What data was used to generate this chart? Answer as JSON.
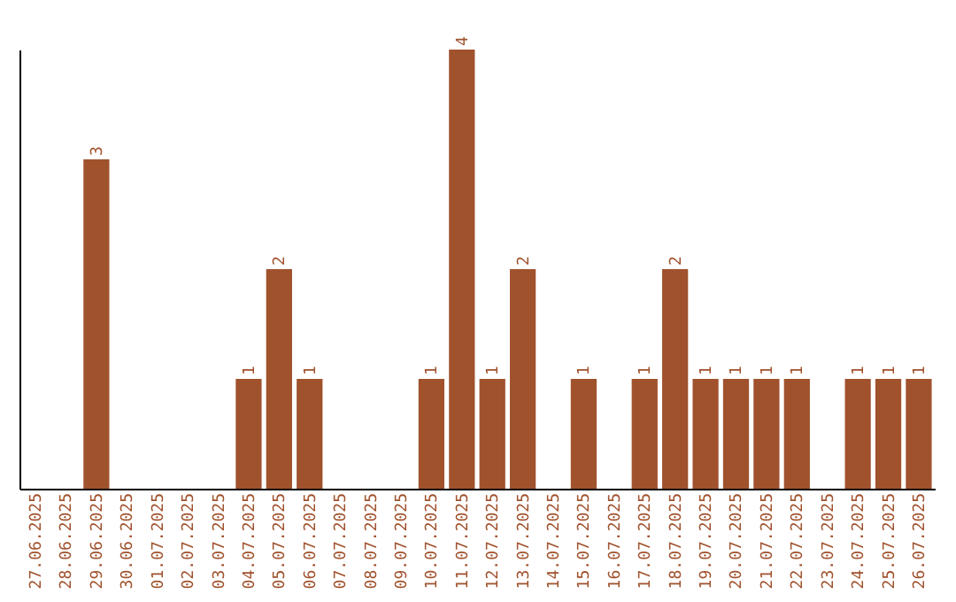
{
  "chart_data": {
    "type": "bar",
    "categories": [
      "27.06.2025",
      "28.06.2025",
      "29.06.2025",
      "30.06.2025",
      "01.07.2025",
      "02.07.2025",
      "03.07.2025",
      "04.07.2025",
      "05.07.2025",
      "06.07.2025",
      "07.07.2025",
      "08.07.2025",
      "09.07.2025",
      "10.07.2025",
      "11.07.2025",
      "12.07.2025",
      "13.07.2025",
      "14.07.2025",
      "15.07.2025",
      "16.07.2025",
      "17.07.2025",
      "18.07.2025",
      "19.07.2025",
      "20.07.2025",
      "21.07.2025",
      "22.07.2025",
      "23.07.2025",
      "24.07.2025",
      "25.07.2025",
      "26.07.2025"
    ],
    "values": [
      0,
      0,
      3,
      0,
      0,
      0,
      0,
      1,
      2,
      1,
      0,
      0,
      0,
      1,
      4,
      1,
      2,
      0,
      1,
      0,
      1,
      2,
      1,
      1,
      1,
      1,
      0,
      1,
      1,
      1
    ],
    "value_labels": [
      null,
      null,
      "3",
      null,
      null,
      null,
      null,
      "1",
      "2",
      "1",
      null,
      null,
      null,
      "1",
      "4",
      "1",
      "2",
      null,
      "1",
      null,
      "1",
      "2",
      "1",
      "1",
      "1",
      "1",
      null,
      "1",
      "1",
      "1"
    ],
    "color": "#a0522d",
    "tick_labels": "x",
    "grid": false
  }
}
